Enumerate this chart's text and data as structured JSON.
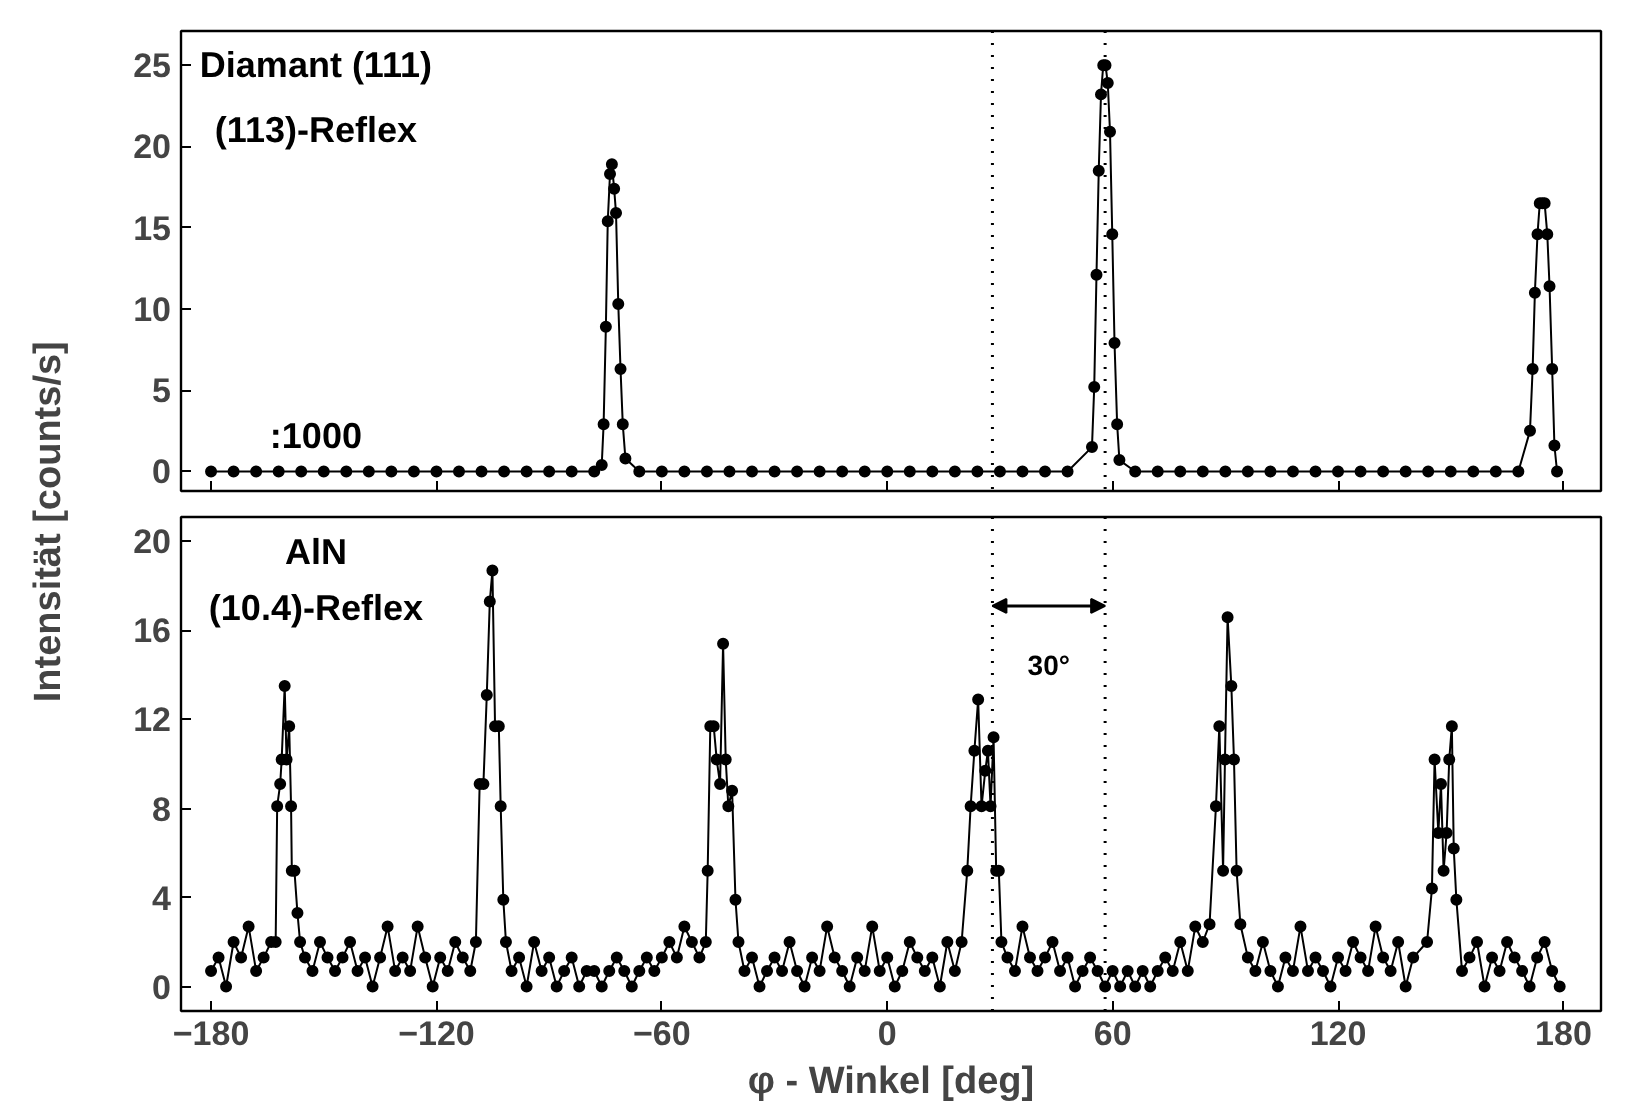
{
  "chart_data": [
    {
      "type": "line",
      "marker": "circle",
      "ylabel": "Intensität [counts/s]",
      "tick_labels": "y",
      "xlim": [
        -188,
        190
      ],
      "ylim": [
        -1.2,
        27.1
      ],
      "xticks": [
        -180,
        -120,
        -60,
        0,
        60,
        120,
        180
      ],
      "yticks": [
        0,
        5,
        10,
        15,
        20,
        25
      ],
      "annotations": [
        "Diamant (111)",
        "(113)-Reflex",
        ":1000"
      ],
      "ref_lines": [
        {
          "axis": "x",
          "value": 28,
          "line_style": "dotted",
          "color": "#000000"
        },
        {
          "axis": "x",
          "value": 58,
          "line_style": "dotted",
          "color": "#000000"
        }
      ],
      "series": [
        {
          "color": "#000000",
          "x": [
            -180,
            -174,
            -168,
            -162,
            -156,
            -150,
            -144,
            -138,
            -132,
            -126,
            -120,
            -114,
            -108,
            -102,
            -96,
            -90,
            -84,
            -78,
            -76.0,
            -75.5,
            -74.9,
            -74.4,
            -73.8,
            -73.3,
            -72.7,
            -72.2,
            -71.6,
            -71.0,
            -70.4,
            -69.7,
            -66,
            -60,
            -54,
            -48,
            -42,
            -36,
            -30,
            -24,
            -18,
            -12,
            -6,
            0,
            6,
            12,
            18,
            24,
            30,
            36,
            42,
            48,
            54.5,
            55.1,
            55.7,
            56.3,
            56.9,
            57.5,
            58.1,
            58.7,
            59.3,
            59.9,
            60.5,
            61.2,
            61.8,
            66,
            72,
            78,
            84,
            90,
            96,
            102,
            108,
            114,
            120,
            126,
            132,
            138,
            144,
            150,
            156,
            162,
            168,
            171.1,
            171.8,
            172.4,
            173.1,
            173.7,
            174.4,
            175.0,
            175.7,
            176.3,
            177.0,
            177.6,
            178.3
          ],
          "values": [
            0,
            0,
            0,
            0,
            0,
            0,
            0,
            0,
            0,
            0,
            0,
            0,
            0,
            0,
            0,
            0,
            0,
            0,
            0.4,
            2.9,
            8.9,
            15.4,
            18.3,
            18.9,
            17.4,
            15.9,
            10.3,
            6.3,
            2.9,
            0.8,
            0,
            0,
            0,
            0,
            0,
            0,
            0,
            0,
            0,
            0,
            0,
            0,
            0,
            0,
            0,
            0,
            0,
            0,
            0,
            0,
            1.5,
            5.2,
            12.1,
            18.5,
            23.2,
            25,
            25,
            23.9,
            20.9,
            14.6,
            7.9,
            2.9,
            0.7,
            0,
            0,
            0,
            0,
            0,
            0,
            0,
            0,
            0,
            0,
            0,
            0,
            0,
            0,
            0,
            0,
            0,
            0,
            2.5,
            6.3,
            11.0,
            14.6,
            16.5,
            16.5,
            16.5,
            14.6,
            11.4,
            6.3,
            1.6,
            0
          ]
        }
      ]
    },
    {
      "type": "line",
      "marker": "circle",
      "xlabel": "φ - Winkel [deg]",
      "xlim": [
        -188,
        190
      ],
      "ylim": [
        -1.1,
        21.1
      ],
      "xticks": [
        -180,
        -120,
        -60,
        0,
        60,
        120,
        180
      ],
      "yticks": [
        0,
        4,
        8,
        12,
        16,
        20
      ],
      "annotations": [
        "AlN",
        "(10.4)-Reflex",
        "30°"
      ],
      "ref_lines": [
        {
          "axis": "x",
          "value": 28,
          "line_style": "dotted",
          "color": "#000000"
        },
        {
          "axis": "x",
          "value": 58,
          "line_style": "dotted",
          "color": "#000000"
        }
      ],
      "series": [
        {
          "color": "#000000",
          "x": [
            -180,
            -178,
            -176,
            -174,
            -172,
            -170,
            -168,
            -166,
            -164,
            -162.8,
            -162.4,
            -161.6,
            -161.2,
            -160.4,
            -159.9,
            -159.2,
            -158.7,
            -158.5,
            -157.8,
            -157.0,
            -156.3,
            -155,
            -153,
            -151,
            -149,
            -147,
            -145,
            -143,
            -141,
            -139,
            -137,
            -135,
            -133,
            -131,
            -129,
            -127,
            -125,
            -123,
            -121,
            -119,
            -117,
            -115,
            -113,
            -111,
            -109.5,
            -108.5,
            -107.5,
            -106.6,
            -105.8,
            -105.1,
            -104.4,
            -103.4,
            -102.9,
            -102.2,
            -101.5,
            -100,
            -98,
            -96,
            -94,
            -92,
            -90,
            -88,
            -86,
            -84,
            -82,
            -80,
            -78,
            -76,
            -74,
            -72,
            -70,
            -68,
            -66,
            -64,
            -62,
            -60,
            -58,
            -56,
            -54,
            -52,
            -50,
            -48.3,
            -47.8,
            -47.1,
            -46.2,
            -45.4,
            -44.5,
            -43.7,
            -43.0,
            -42.3,
            -41.3,
            -40.4,
            -39.6,
            -38,
            -36,
            -34,
            -32,
            -30,
            -28,
            -26,
            -24,
            -22,
            -20,
            -18,
            -16,
            -14,
            -12,
            -10,
            -8,
            -6,
            -4,
            -2,
            0,
            2,
            4,
            6,
            8,
            10,
            12,
            14,
            16,
            18,
            19.8,
            21.3,
            22.2,
            23.2,
            24.2,
            25.1,
            26.1,
            26.8,
            27.5,
            28.3,
            29.0,
            29.7,
            30.4,
            32,
            34,
            36,
            38,
            40,
            42,
            44,
            46,
            48,
            50,
            52,
            54,
            56,
            58,
            60,
            62,
            64,
            66,
            68,
            70,
            72,
            74,
            76,
            78,
            80,
            82,
            84,
            85.8,
            87.5,
            88.4,
            89.4,
            89.9,
            90.6,
            91.6,
            92.3,
            93.0,
            94.0,
            96,
            98,
            100,
            102,
            104,
            106,
            108,
            110,
            112,
            114,
            116,
            118,
            120,
            122,
            124,
            126,
            128,
            130,
            132,
            134,
            136,
            138,
            140,
            143.7,
            145.0,
            145.7,
            146.7,
            147.4,
            148.1,
            148.9,
            149.6,
            150.3,
            150.8,
            151.5,
            153,
            155,
            157,
            159,
            161,
            163,
            165,
            167,
            169,
            171,
            173,
            175,
            177,
            179
          ],
          "values": [
            0.7,
            1.3,
            0,
            2,
            1.3,
            2.7,
            0.7,
            1.3,
            2,
            2,
            8.1,
            9.1,
            10.2,
            13.5,
            10.2,
            11.7,
            8.1,
            5.2,
            5.2,
            3.3,
            2,
            1.3,
            0.7,
            2,
            1.3,
            0.7,
            1.3,
            2,
            0.7,
            1.3,
            0,
            1.3,
            2.7,
            0.7,
            1.3,
            0.7,
            2.7,
            1.3,
            0,
            1.3,
            0.7,
            2,
            1.3,
            0.7,
            2,
            9.1,
            9.1,
            13.1,
            17.3,
            18.7,
            11.7,
            11.7,
            8.1,
            3.9,
            2,
            0.7,
            1.3,
            0,
            2,
            0.7,
            1.3,
            0,
            0.7,
            1.3,
            0,
            0.7,
            0.7,
            0,
            0.7,
            1.3,
            0.7,
            0,
            0.7,
            1.3,
            0.7,
            1.3,
            2,
            1.3,
            2.7,
            2,
            1.3,
            2,
            5.2,
            11.7,
            11.7,
            10.2,
            9.1,
            15.4,
            10.2,
            8.1,
            8.8,
            3.9,
            2,
            0.7,
            1.3,
            0,
            0.7,
            1.3,
            0.7,
            2,
            0.7,
            0,
            1.3,
            0.7,
            2.7,
            1.3,
            0.7,
            0,
            1.3,
            0.7,
            2.7,
            0.7,
            1.3,
            0,
            0.7,
            2,
            1.3,
            0.7,
            1.3,
            0,
            2,
            0.7,
            2,
            5.2,
            8.1,
            10.6,
            12.9,
            8.1,
            9.7,
            10.6,
            8.1,
            11.2,
            5.2,
            5.2,
            2,
            1.3,
            0.7,
            2.7,
            1.3,
            0.7,
            1.3,
            2,
            0.7,
            1.3,
            0,
            0.7,
            1.3,
            0.7,
            0,
            0.7,
            0,
            0.7,
            0,
            0.7,
            0,
            0.7,
            1.3,
            0.7,
            2,
            0.7,
            2.7,
            2,
            2.8,
            8.1,
            11.7,
            5.2,
            10.2,
            16.6,
            13.5,
            10.2,
            5.2,
            2.8,
            1.3,
            0.7,
            2,
            0.7,
            0,
            1.3,
            0.7,
            2.7,
            0.7,
            1.3,
            0.7,
            0,
            1.3,
            0.7,
            2,
            1.3,
            0.7,
            2.7,
            1.3,
            0.7,
            2,
            0,
            1.3,
            2,
            4.4,
            10.2,
            6.9,
            9.1,
            5.2,
            6.9,
            10.2,
            11.7,
            6.2,
            3.9,
            0.7,
            1.3,
            2,
            0,
            1.3,
            0.7,
            2,
            1.3,
            0.7,
            0,
            1.3,
            2,
            0.7,
            0
          ]
        }
      ]
    }
  ]
}
